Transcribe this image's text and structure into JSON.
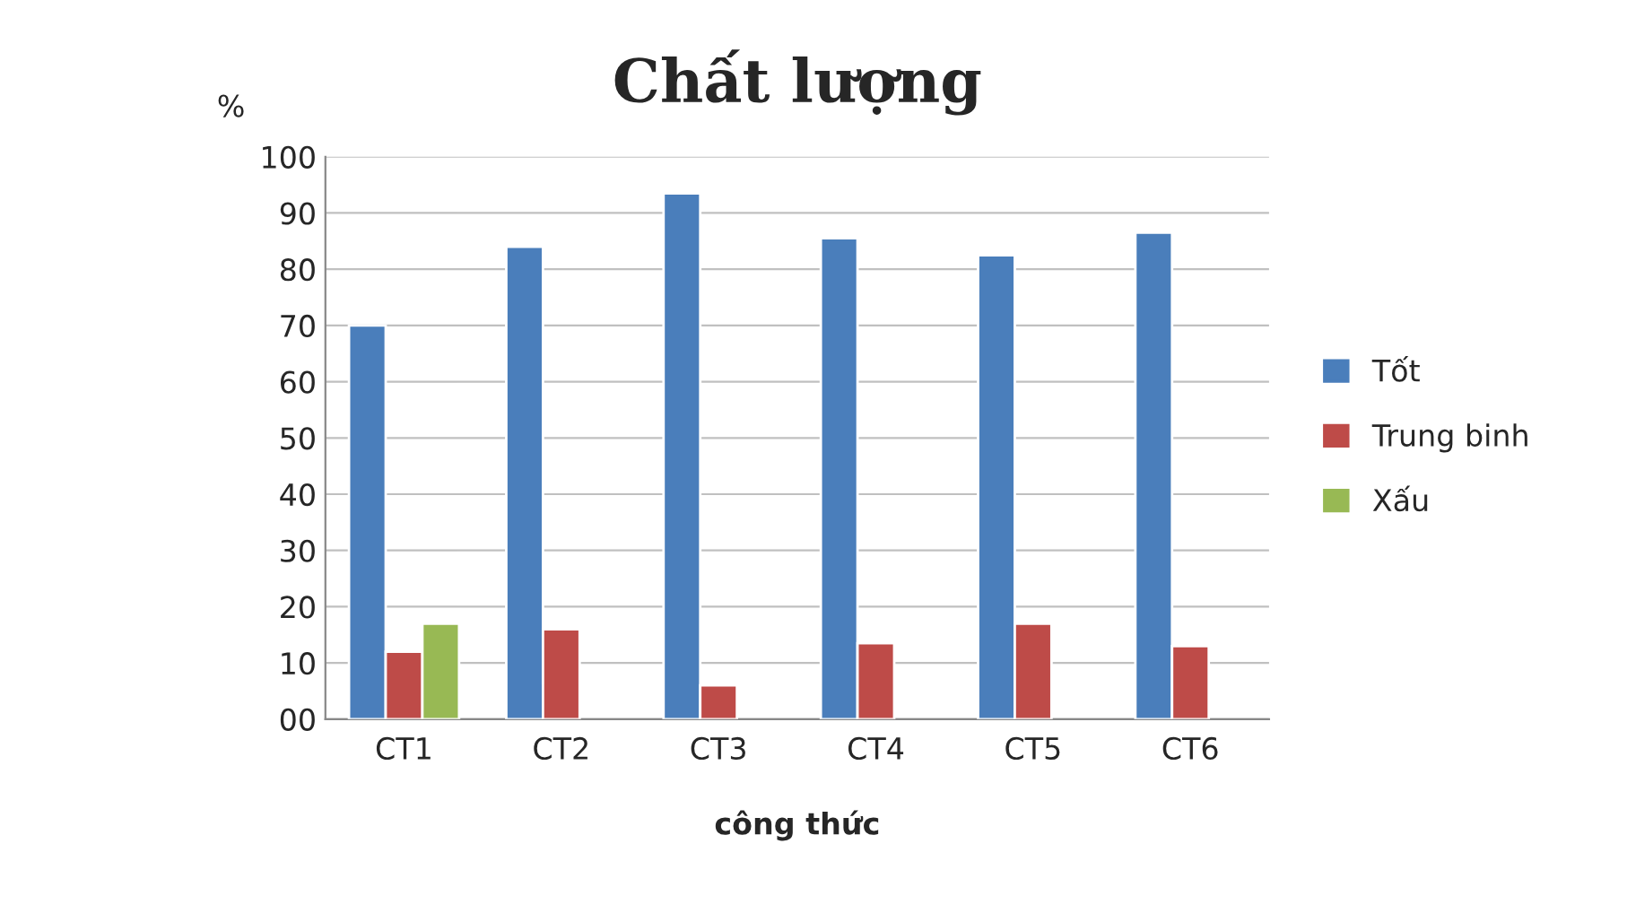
{
  "chart_data": {
    "type": "bar",
    "title": "Chất lượng",
    "xlabel": "công thức",
    "ylabel": "%",
    "categories": [
      "CT1",
      "CT2",
      "CT3",
      "CT4",
      "CT5",
      "CT6"
    ],
    "series": [
      {
        "name": "Tốt",
        "color": "#4a7ebb",
        "values": [
          70,
          84,
          93.5,
          85.5,
          82.5,
          86.5
        ]
      },
      {
        "name": "Trung binh",
        "color": "#be4b48",
        "values": [
          12,
          16,
          6,
          13.5,
          17,
          13
        ]
      },
      {
        "name": "Xấu",
        "color": "#98b954",
        "values": [
          17,
          null,
          null,
          null,
          null,
          null
        ]
      }
    ],
    "ylim": [
      0,
      100
    ],
    "yticks": [
      {
        "value": 0,
        "label": "00"
      },
      10,
      20,
      30,
      40,
      50,
      60,
      70,
      80,
      90,
      100
    ],
    "grid": "y",
    "legend": "right"
  }
}
